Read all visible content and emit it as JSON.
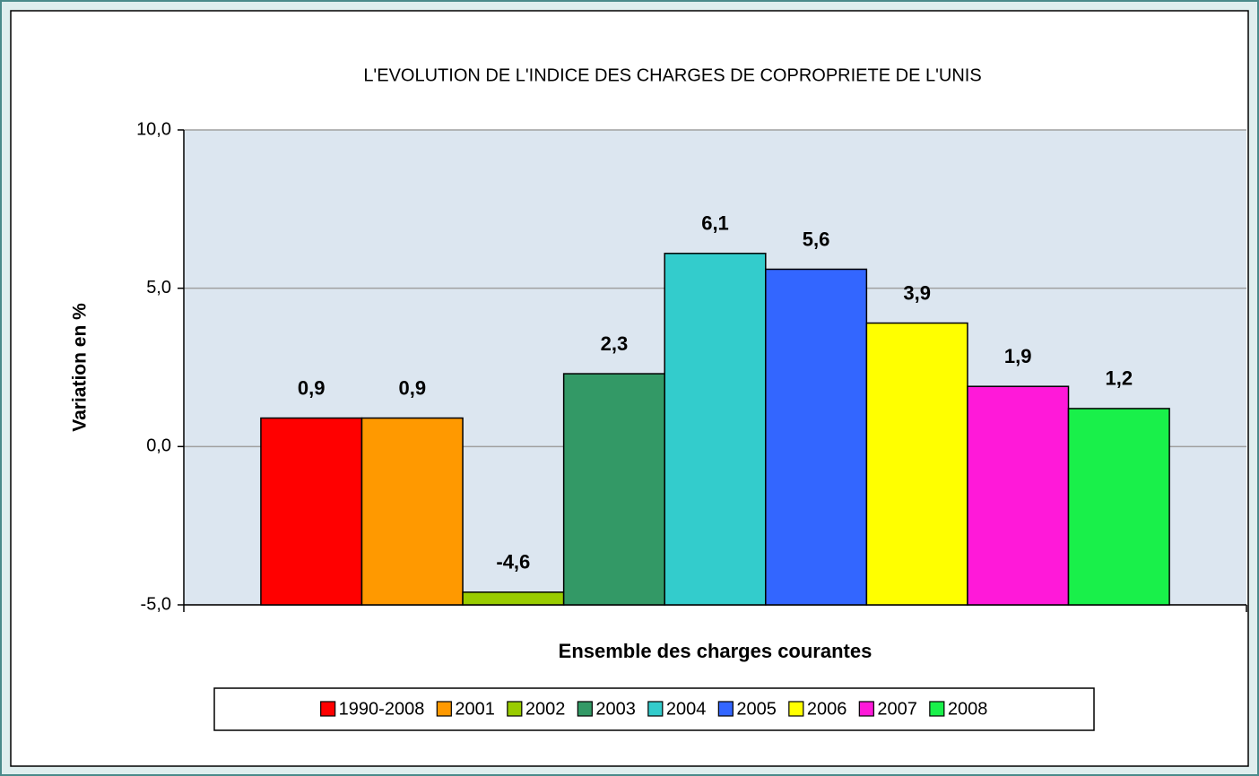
{
  "chart_data": {
    "type": "bar",
    "title": "L'EVOLUTION DE L'INDICE DES CHARGES DE COPROPRIETE DE L'UNIS",
    "y_label": "Variation en %",
    "categories": [
      "Ensemble des charges courantes"
    ],
    "series": [
      {
        "name": "1990-2008",
        "color": "#ff0000",
        "values": [
          0.9
        ],
        "value_labels": [
          "0,9"
        ]
      },
      {
        "name": "2001",
        "color": "#ff9900",
        "values": [
          0.9
        ],
        "value_labels": [
          "0,9"
        ]
      },
      {
        "name": "2002",
        "color": "#99cc00",
        "values": [
          -4.6
        ],
        "value_labels": [
          "-4,6"
        ]
      },
      {
        "name": "2003",
        "color": "#339966",
        "values": [
          2.3
        ],
        "value_labels": [
          "2,3"
        ]
      },
      {
        "name": "2004",
        "color": "#33cccc",
        "values": [
          6.1
        ],
        "value_labels": [
          "6,1"
        ]
      },
      {
        "name": "2005",
        "color": "#3366ff",
        "values": [
          5.6
        ],
        "value_labels": [
          "5,6"
        ]
      },
      {
        "name": "2006",
        "color": "#ffff00",
        "values": [
          3.9
        ],
        "value_labels": [
          "3,9"
        ]
      },
      {
        "name": "2007",
        "color": "#ff19d9",
        "values": [
          1.9
        ],
        "value_labels": [
          "1,9"
        ]
      },
      {
        "name": "2008",
        "color": "#19f04a",
        "values": [
          1.2
        ],
        "value_labels": [
          "1,2"
        ]
      }
    ],
    "ylim": [
      -5,
      10
    ],
    "yticks": [
      {
        "value": -5,
        "label": "-5,0"
      },
      {
        "value": 0,
        "label": "0,0"
      },
      {
        "value": 5,
        "label": "5,0"
      },
      {
        "value": 10,
        "label": "10,0"
      }
    ],
    "grid": true,
    "legend": "bottom"
  }
}
